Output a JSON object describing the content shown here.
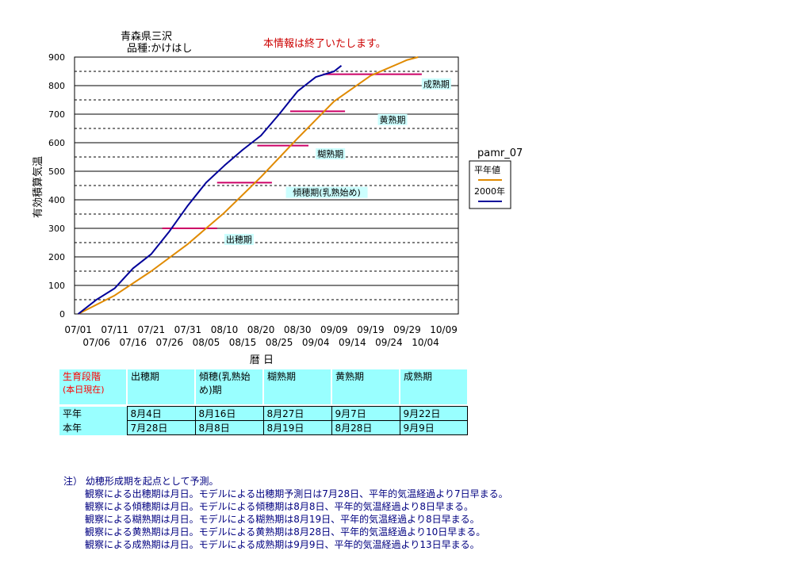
{
  "header": {
    "location": "青森県三沢",
    "variety": "品種:かけはし",
    "notice": "本情報は終了いたします。"
  },
  "colors": {
    "normal_year": "#e08a00",
    "current_year": "#000099",
    "stage_lines": "#cc0066",
    "stage_label_bg": "#ccffff",
    "notice": "#cc0000",
    "notes": "#000080"
  },
  "chart_data": {
    "type": "line",
    "ylabel": "有効積算気温",
    "xlabel": "暦 日",
    "ylim": [
      0,
      900
    ],
    "yticks": [
      0,
      100,
      200,
      300,
      400,
      500,
      600,
      700,
      800,
      900
    ],
    "xlim": [
      "06-30",
      "10-13"
    ],
    "x_ticks_top": [
      "07/01",
      "07/11",
      "07/21",
      "07/31",
      "08/10",
      "08/20",
      "08/30",
      "09/09",
      "09/19",
      "09/29",
      "10/09"
    ],
    "x_ticks_bottom": [
      "07/06",
      "07/16",
      "07/26",
      "08/05",
      "08/15",
      "08/25",
      "09/04",
      "09/14",
      "09/24",
      "10/04"
    ],
    "grid": "solid lines at every 100, dashed lines at every 50",
    "legend": {
      "title": "pamr_07",
      "placement": "right"
    },
    "series": [
      {
        "name": "平年値",
        "x": [
          "07-01",
          "07-11",
          "07-21",
          "07-31",
          "08-10",
          "08-20",
          "08-30",
          "09-09",
          "09-19",
          "09-29",
          "10-02"
        ],
        "y": [
          0,
          65,
          150,
          245,
          355,
          480,
          615,
          745,
          835,
          890,
          900
        ]
      },
      {
        "name": "2000年",
        "x": [
          "07-01",
          "07-06",
          "07-11",
          "07-16",
          "07-21",
          "07-26",
          "07-31",
          "08-05",
          "08-10",
          "08-15",
          "08-20",
          "08-25",
          "08-30",
          "09-04",
          "09-09",
          "09-11"
        ],
        "y": [
          0,
          50,
          90,
          160,
          210,
          290,
          380,
          460,
          520,
          575,
          625,
          700,
          780,
          830,
          850,
          870
        ]
      }
    ],
    "stage_lines": [
      {
        "y": 300,
        "x1": "07-24",
        "x2": "08-08"
      },
      {
        "y": 460,
        "x1": "08-08",
        "x2": "08-23"
      },
      {
        "y": 590,
        "x1": "08-19",
        "x2": "09-02"
      },
      {
        "y": 710,
        "x1": "08-28",
        "x2": "09-12"
      },
      {
        "y": 840,
        "x1": "09-06",
        "x2": "10-03"
      }
    ],
    "stage_labels": [
      {
        "text": "出穂期",
        "x": "08-14",
        "y": 250
      },
      {
        "text": "傾穂期(乳熟始め)",
        "x": "09-07",
        "y": 415
      },
      {
        "text": "糊熟期",
        "x": "09-08",
        "y": 550
      },
      {
        "text": "黄熟期",
        "x": "09-25",
        "y": 670
      },
      {
        "text": "成熟期",
        "x": "10-07",
        "y": 795
      }
    ]
  },
  "table": {
    "corner_label": "生育段階",
    "corner_sublabel": "(本日現在)",
    "stages": [
      "出穂期",
      "傾穂(乳熟始め)期",
      "糊熟期",
      "黄熟期",
      "成熟期"
    ],
    "rows": [
      {
        "label": "平年",
        "values": [
          "8月4日",
          "8月16日",
          "8月27日",
          "9月7日",
          "9月22日"
        ]
      },
      {
        "label": "本年",
        "values": [
          "7月28日",
          "8月8日",
          "8月19日",
          "8月28日",
          "9月9日"
        ]
      }
    ]
  },
  "notes": {
    "head": "注） 幼穂形成期を起点として予測。",
    "lines": [
      "観察による出穂期は月日。モデルによる出穂期予測日は7月28日、平年的気温経過より7日早まる。",
      "観察による傾穂期は月日。モデルによる傾穂期は8月8日、平年的気温経過より8日早まる。",
      "観察による糊熟期は月日。モデルによる糊熟期は8月19日、平年的気温経過より8日早まる。",
      "観察による黄熟期は月日。モデルによる黄熟期は8月28日、平年的気温経過より10日早まる。",
      "観察による成熟期は月日。モデルによる成熟期は9月9日、平年的気温経過より13日早まる。"
    ]
  }
}
